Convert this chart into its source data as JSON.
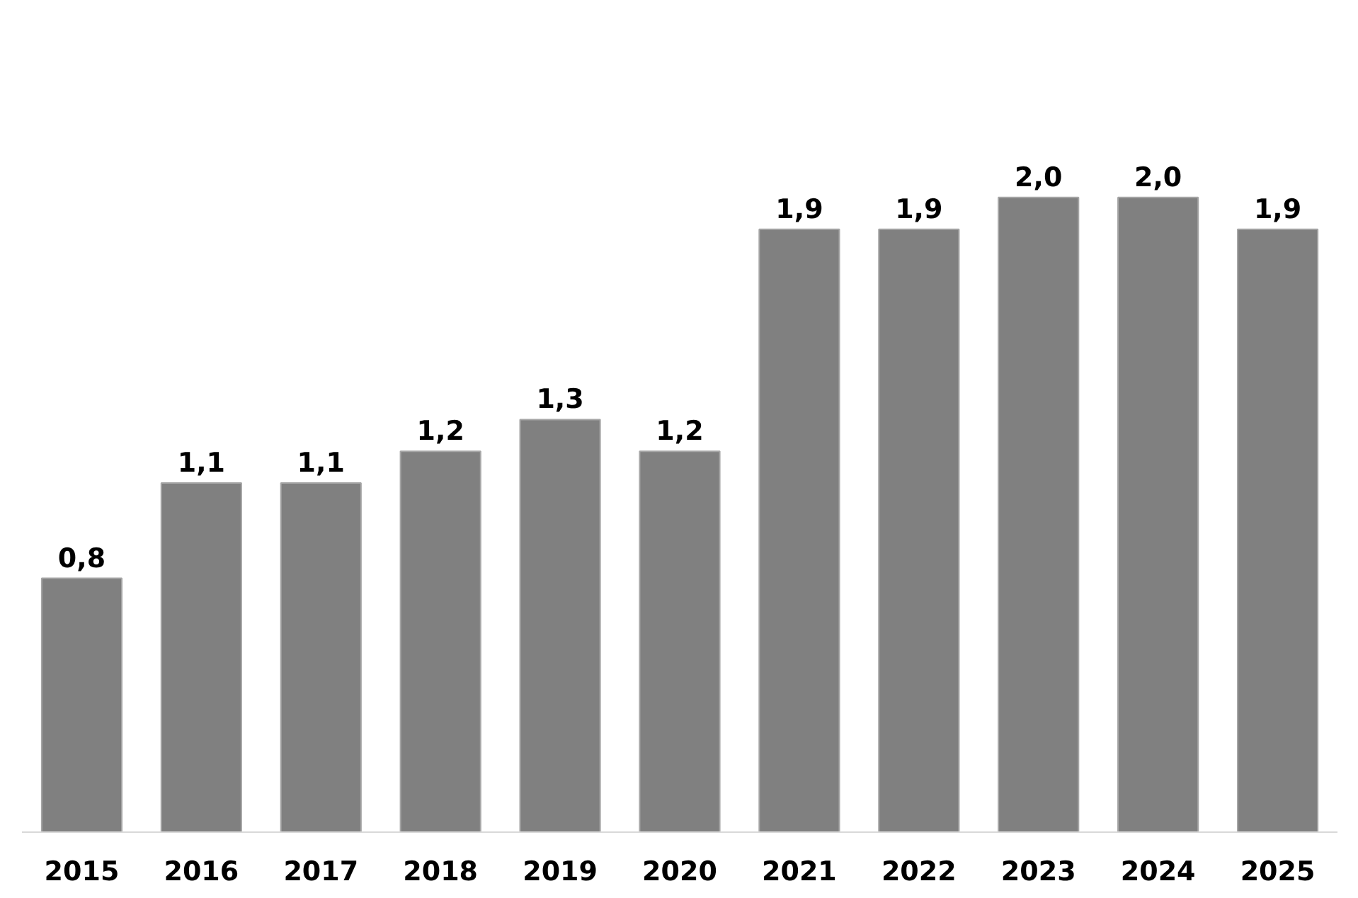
{
  "chart_data": {
    "type": "bar",
    "categories": [
      "2015",
      "2016",
      "2017",
      "2018",
      "2019",
      "2020",
      "2021",
      "2022",
      "2023",
      "2024",
      "2025"
    ],
    "values": [
      0.8,
      1.1,
      1.1,
      1.2,
      1.3,
      1.2,
      1.9,
      1.9,
      2.0,
      2.0,
      1.9
    ],
    "value_labels": [
      "0,8",
      "1,1",
      "1,1",
      "1,2",
      "1,3",
      "1,2",
      "1,9",
      "1,9",
      "2,0",
      "2,0",
      "1,9"
    ],
    "color": "#808080",
    "grid": false,
    "tick_labels": "x"
  }
}
